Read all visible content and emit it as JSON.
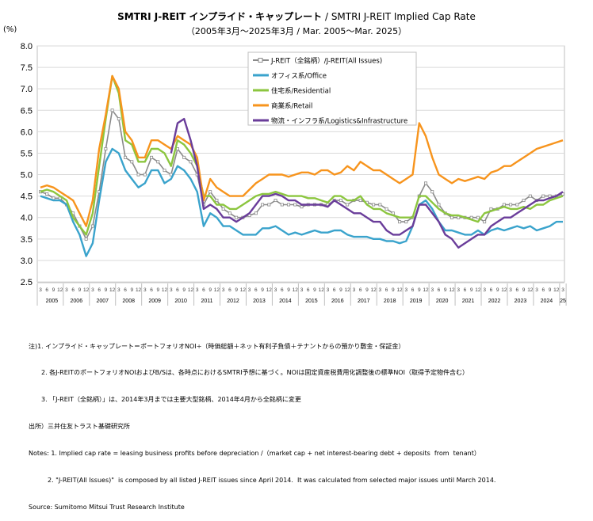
{
  "title": {
    "main_bold": "SMTRI J-REIT インプライド・キャップレート",
    "main_rest": " / SMTRI J-REIT Implied Cap Rate",
    "subtitle": "（2005年3月～2025年3月 / Mar. 2005～Mar. 2025）"
  },
  "chart_data": {
    "type": "line",
    "title": "SMTRI J-REIT インプライド・キャップレート / SMTRI J-REIT Implied Cap Rate",
    "ylabel": "(%)",
    "ylim": [
      2.5,
      8.0
    ],
    "yticks": [
      "8.0",
      "7.5",
      "7.0",
      "6.5",
      "6.0",
      "5.5",
      "5.0",
      "4.5",
      "4.0",
      "3.5",
      "3.0",
      "2.5"
    ],
    "grid": true,
    "legend_position": "top-center",
    "month_ticks": [
      "3",
      "6",
      "9",
      "12"
    ],
    "years": [
      "2005",
      "2006",
      "2007",
      "2008",
      "2009",
      "2010",
      "2011",
      "2012",
      "2013",
      "2014",
      "2015",
      "2016",
      "2017",
      "2018",
      "2019",
      "2020",
      "2021",
      "2022",
      "2023",
      "2024",
      "25"
    ],
    "x_unit": "quarter (Mar.2005–Mar.2025)",
    "series": [
      {
        "name": "J-REIT（全銘柄）/J-REIT(All Issues)",
        "color": "#8a8a8a",
        "marker": "square",
        "values": [
          4.6,
          4.55,
          4.45,
          4.45,
          4.3,
          4.1,
          3.8,
          3.5,
          3.8,
          4.6,
          5.6,
          6.5,
          6.3,
          5.4,
          5.3,
          5.0,
          5.0,
          5.4,
          5.3,
          5.1,
          5.0,
          5.6,
          5.4,
          5.3,
          5.0,
          4.3,
          4.6,
          4.4,
          4.2,
          4.1,
          4.0,
          4.0,
          4.05,
          4.1,
          4.3,
          4.3,
          4.4,
          4.3,
          4.3,
          4.3,
          4.25,
          4.3,
          4.3,
          4.3,
          4.3,
          4.4,
          4.4,
          4.3,
          4.4,
          4.4,
          4.35,
          4.3,
          4.3,
          4.2,
          4.1,
          3.9,
          3.9,
          4.0,
          4.5,
          4.8,
          4.6,
          4.3,
          4.1,
          4.0,
          4.0,
          4.0,
          4.0,
          4.0,
          3.9,
          4.2,
          4.2,
          4.3,
          4.3,
          4.3,
          4.4,
          4.5,
          4.4,
          4.5,
          4.5,
          4.5,
          4.55
        ]
      },
      {
        "name": "オフィス系/Office",
        "color": "#3aa3cc",
        "marker": "none",
        "values": [
          4.5,
          4.45,
          4.4,
          4.4,
          4.3,
          3.9,
          3.6,
          3.1,
          3.4,
          4.4,
          5.3,
          5.6,
          5.5,
          5.1,
          4.9,
          4.7,
          4.8,
          5.1,
          5.1,
          4.8,
          4.9,
          5.2,
          5.1,
          4.9,
          4.6,
          3.8,
          4.1,
          4.0,
          3.8,
          3.8,
          3.7,
          3.6,
          3.6,
          3.6,
          3.75,
          3.75,
          3.8,
          3.7,
          3.6,
          3.65,
          3.6,
          3.65,
          3.7,
          3.65,
          3.65,
          3.7,
          3.7,
          3.6,
          3.55,
          3.55,
          3.55,
          3.5,
          3.5,
          3.45,
          3.45,
          3.4,
          3.45,
          3.8,
          4.3,
          4.4,
          4.2,
          3.9,
          3.7,
          3.7,
          3.65,
          3.6,
          3.6,
          3.7,
          3.6,
          3.7,
          3.75,
          3.7,
          3.75,
          3.8,
          3.75,
          3.8,
          3.7,
          3.75,
          3.8,
          3.9,
          3.9
        ]
      },
      {
        "name": "住宅系/Residential",
        "color": "#8cc63f",
        "marker": "none",
        "values": [
          4.6,
          4.65,
          4.6,
          4.5,
          4.4,
          4.0,
          3.8,
          3.6,
          4.1,
          5.2,
          6.3,
          7.3,
          6.9,
          5.8,
          5.7,
          5.3,
          5.3,
          5.6,
          5.6,
          5.5,
          5.2,
          5.8,
          5.7,
          5.5,
          5.2,
          4.5,
          4.5,
          4.3,
          4.3,
          4.2,
          4.2,
          4.3,
          4.4,
          4.5,
          4.55,
          4.55,
          4.6,
          4.55,
          4.5,
          4.5,
          4.5,
          4.45,
          4.45,
          4.4,
          4.35,
          4.5,
          4.5,
          4.4,
          4.4,
          4.5,
          4.3,
          4.2,
          4.2,
          4.1,
          4.05,
          4.0,
          4.0,
          4.0,
          4.5,
          4.5,
          4.35,
          4.2,
          4.1,
          4.05,
          4.05,
          4.0,
          3.95,
          3.9,
          4.1,
          4.15,
          4.2,
          4.25,
          4.2,
          4.2,
          4.25,
          4.2,
          4.3,
          4.3,
          4.4,
          4.45,
          4.5
        ]
      },
      {
        "name": "商業系/Retail",
        "color": "#f7941d",
        "marker": "none",
        "values": [
          4.7,
          4.75,
          4.7,
          4.6,
          4.5,
          4.4,
          4.1,
          3.8,
          4.4,
          5.6,
          6.4,
          7.3,
          7.0,
          6.0,
          5.8,
          5.4,
          5.4,
          5.8,
          5.8,
          5.7,
          5.6,
          5.9,
          5.8,
          5.7,
          5.4,
          4.4,
          4.9,
          4.7,
          4.6,
          4.5,
          4.5,
          4.5,
          4.65,
          4.8,
          4.9,
          5.0,
          5.0,
          5.0,
          4.95,
          5.0,
          5.05,
          5.05,
          5.0,
          5.1,
          5.1,
          5.0,
          5.05,
          5.2,
          5.1,
          5.3,
          5.2,
          5.1,
          5.1,
          5.0,
          4.9,
          4.8,
          4.9,
          5.0,
          6.2,
          5.9,
          5.4,
          5.0,
          4.9,
          4.8,
          4.9,
          4.85,
          4.9,
          4.95,
          4.9,
          5.05,
          5.1,
          5.2,
          5.2,
          5.3,
          5.4,
          5.5,
          5.6,
          5.65,
          5.7,
          5.75,
          5.8
        ]
      },
      {
        "name": "物流・インフラ系/Logistics&Infrastructure",
        "color": "#6a3d9a",
        "marker": "none",
        "values": [
          null,
          null,
          null,
          null,
          null,
          null,
          null,
          null,
          null,
          null,
          null,
          null,
          null,
          null,
          null,
          null,
          null,
          null,
          null,
          null,
          5.5,
          6.2,
          6.3,
          5.8,
          5.2,
          4.2,
          4.3,
          4.2,
          4.0,
          4.0,
          3.9,
          4.0,
          4.1,
          4.3,
          4.5,
          4.5,
          4.55,
          4.5,
          4.4,
          4.4,
          4.3,
          4.3,
          4.3,
          4.3,
          4.25,
          4.4,
          4.3,
          4.2,
          4.1,
          4.1,
          4.0,
          3.9,
          3.9,
          3.7,
          3.6,
          3.6,
          3.7,
          3.8,
          4.3,
          4.3,
          4.1,
          3.9,
          3.6,
          3.5,
          3.3,
          3.4,
          3.5,
          3.6,
          3.6,
          3.8,
          3.9,
          4.0,
          4.0,
          4.1,
          4.2,
          4.3,
          4.4,
          4.4,
          4.45,
          4.5,
          4.6
        ]
      }
    ]
  },
  "notes": [
    "注)1. インプライド・キャップレート＝ポートフォリオNOI÷（時価総額＋ネット有利子負債＋テナントからの預かり敷金・保証金）",
    "　　2. 各J-REITのポートフォリオNOIおよびB/Sは、各時点におけるSMTRI予想に基づく。NOIは固定資産税費用化調整後の標準NOI（取得予定物件含む）",
    "　　3. 「J-REIT（全銘柄）」は、2014年3月までは主要大型銘柄、2014年4月から全銘柄に変更",
    "出所）三井住友トラスト基礎研究所",
    "Notes: 1. Implied cap rate = leasing business profits before depreciation /（market cap + net interest-bearing debt + deposits  from  tenant）",
    "　　　2. \"J-REIT(All Issues)\"  is composed by all listed J-REIT issues since April 2014.  It was calculated from selected major issues until March 2014.",
    "Source: Sumitomo Mitsui Trust Research Institute"
  ]
}
